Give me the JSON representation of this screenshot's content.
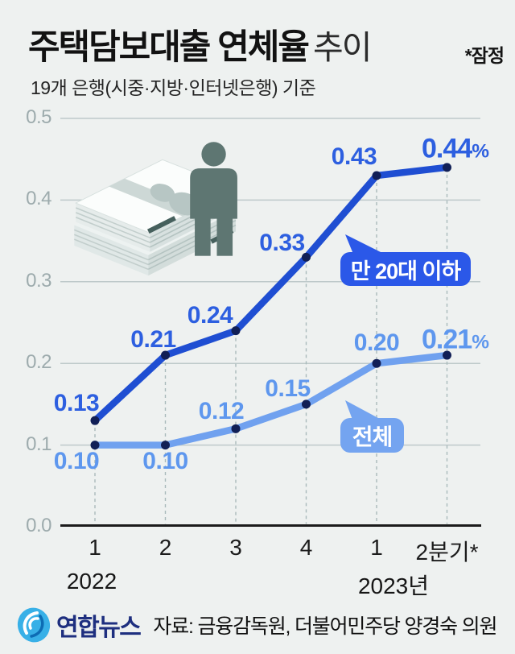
{
  "header": {
    "title_main": "주택담보대출 연체율",
    "title_sub": "추이",
    "note": "*잠정",
    "subtitle": "19개 은행(시중·지방·인터넷은행) 기준"
  },
  "chart_data": {
    "type": "line",
    "title": "주택담보대출 연체율 추이",
    "unit": "%",
    "categories": [
      "1",
      "2",
      "3",
      "4",
      "1",
      "2분기*"
    ],
    "x_years": [
      {
        "label": "2022",
        "at_index": 0
      },
      {
        "label": "2023년",
        "at_index": 4
      }
    ],
    "ylim": [
      0,
      0.5
    ],
    "yticks": [
      "0.0",
      "0.1",
      "0.2",
      "0.3",
      "0.4",
      "0.5"
    ],
    "grid": "horizontal",
    "legend_position": "inline-bubbles",
    "series": [
      {
        "name": "만 20대 이하",
        "values": [
          0.13,
          0.21,
          0.24,
          0.33,
          0.43,
          0.44
        ],
        "labels": [
          "0.13",
          "0.21",
          "0.24",
          "0.33",
          "0.43",
          "0.44%"
        ],
        "color": "#1f4ed2",
        "label_color": "#2d5fe0",
        "bubble_color": "#2b58e8"
      },
      {
        "name": "전체",
        "values": [
          0.1,
          0.1,
          0.12,
          0.15,
          0.2,
          0.21
        ],
        "labels": [
          "0.10",
          "0.10",
          "0.12",
          "0.15",
          "0.20",
          "0.21%"
        ],
        "color": "#70a1ef",
        "label_color": "#5e97ee",
        "bubble_color": "#74a4f0"
      }
    ],
    "point_color": "#111f56",
    "axis_color": "#1b1b1b",
    "grid_color": "#bec9ca",
    "dashed_guide_color": "#a9babb"
  },
  "footer": {
    "logo_text": "연합뉴스",
    "logo_color": "#38b0e7",
    "logo_text_color": "#1e2f7f",
    "source": "자료: 금융감독원, 더불어민주당 양경숙 의원"
  }
}
